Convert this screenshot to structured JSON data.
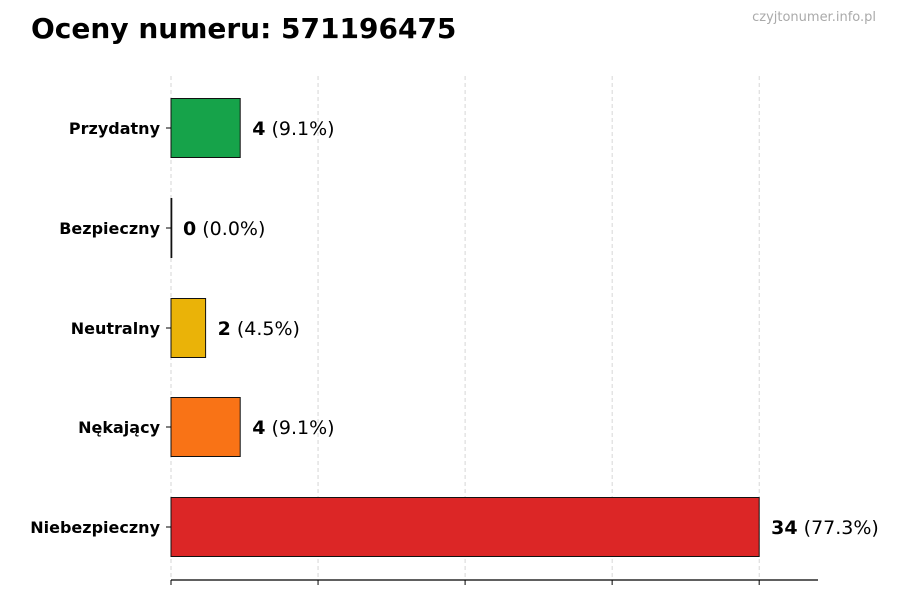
{
  "title": "Oceny numeru: 571196475",
  "watermark": "czyjtonumer.info.pl",
  "chart_data": {
    "type": "bar",
    "orientation": "horizontal",
    "title": "Oceny numeru: 571196475",
    "categories": [
      "Przydatny",
      "Bezpieczny",
      "Neutralny",
      "Nękający",
      "Niebezpieczny"
    ],
    "values": [
      4,
      0,
      2,
      4,
      34
    ],
    "percent_labels": [
      "(9.1%)",
      "(0.0%)",
      "(4.5%)",
      "(9.1%)",
      "(77.3%)"
    ],
    "colors": [
      "#16a34a",
      "#9ca3af",
      "#eab308",
      "#f97316",
      "#dc2626"
    ],
    "xlim": [
      0,
      37.4
    ],
    "xticks": [
      0,
      8.5,
      17,
      25.5,
      34
    ],
    "xtick_labels_shown": false,
    "grid": "x, dashed",
    "xlabel": "",
    "ylabel": ""
  }
}
